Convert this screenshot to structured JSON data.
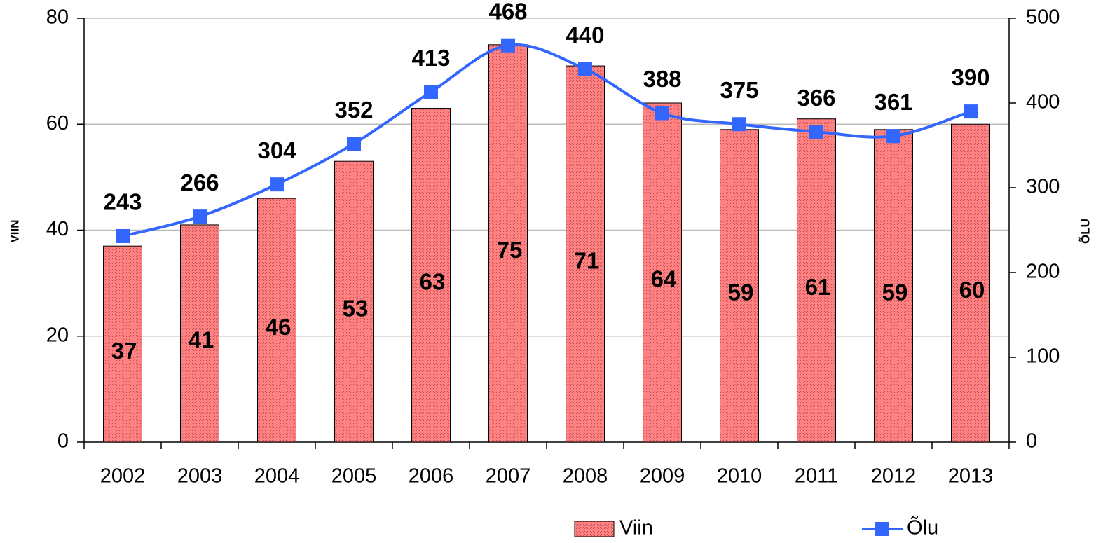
{
  "chart_data": {
    "type": "bar",
    "y_label": "VIIN",
    "y2_label": "ÕLU",
    "categories": [
      "2002",
      "2003",
      "2004",
      "2005",
      "2006",
      "2007",
      "2008",
      "2009",
      "2010",
      "2011",
      "2012",
      "2013"
    ],
    "series": [
      {
        "name": "Viin",
        "type": "bar",
        "color": "#ff8080",
        "values": [
          37,
          41,
          46,
          53,
          63,
          75,
          71,
          64,
          59,
          61,
          59,
          60
        ]
      },
      {
        "name": "Õlu",
        "type": "line",
        "axis": "y2",
        "color": "#3366ff",
        "values": [
          243,
          266,
          304,
          352,
          413,
          468,
          440,
          388,
          375,
          366,
          361,
          390
        ]
      }
    ],
    "ylim": [
      0,
      80
    ],
    "yticks": [
      0,
      20,
      40,
      60,
      80
    ],
    "y2lim": [
      0,
      500
    ],
    "y2ticks": [
      0,
      100,
      200,
      300,
      400,
      500
    ],
    "grid": true,
    "legend": "bottom"
  }
}
